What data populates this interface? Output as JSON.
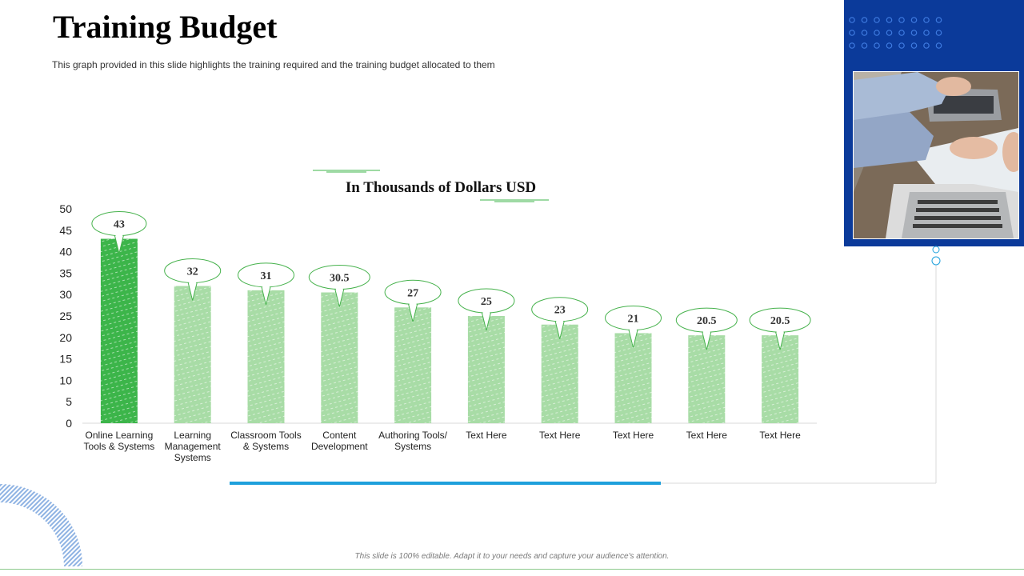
{
  "slide": {
    "title": "Training Budget",
    "subtitle": "This graph provided  in this slide highlights the training required and the training budget allocated to them",
    "footer": "This slide is 100% editable. Adapt it to your needs and capture your audience's attention."
  },
  "photo": {
    "icon": "laptop-photo",
    "description": "People working on laptops"
  },
  "colors": {
    "accent_bar": "#3cb54a",
    "bar": "#a8dca6",
    "callout_border": "#46b24c",
    "blue_panel": "#0b3a9a",
    "blue_line": "#1ea0dc"
  },
  "chart_data": {
    "type": "bar",
    "title": "In Thousands  of Dollars  USD",
    "categories": [
      "Online Learning Tools & Systems",
      "Learning Management Systems",
      "Classroom Tools & Systems",
      "Content Development",
      "Authoring Tools/ Systems",
      "Text Here",
      "Text Here",
      "Text Here",
      "Text Here",
      "Text Here"
    ],
    "category_lines": [
      [
        "Online Learning",
        "Tools & Systems"
      ],
      [
        "Learning",
        "Management",
        "Systems"
      ],
      [
        "Classroom Tools",
        "& Systems"
      ],
      [
        "Content",
        "Development"
      ],
      [
        "Authoring Tools/",
        "Systems"
      ],
      [
        "Text Here"
      ],
      [
        "Text Here"
      ],
      [
        "Text Here"
      ],
      [
        "Text Here"
      ],
      [
        "Text Here"
      ]
    ],
    "values": [
      43,
      32,
      31,
      30.5,
      27,
      25,
      23,
      21,
      20.5,
      20.5
    ],
    "value_labels": [
      "43",
      "32",
      "31",
      "30.5",
      "27",
      "25",
      "23",
      "21",
      "20.5",
      "20.5"
    ],
    "ylim": [
      0,
      50
    ],
    "yticks": [
      0,
      5,
      10,
      15,
      20,
      25,
      30,
      35,
      40,
      45,
      50
    ],
    "xlabel": "",
    "ylabel": "",
    "highlight_index": 0
  }
}
